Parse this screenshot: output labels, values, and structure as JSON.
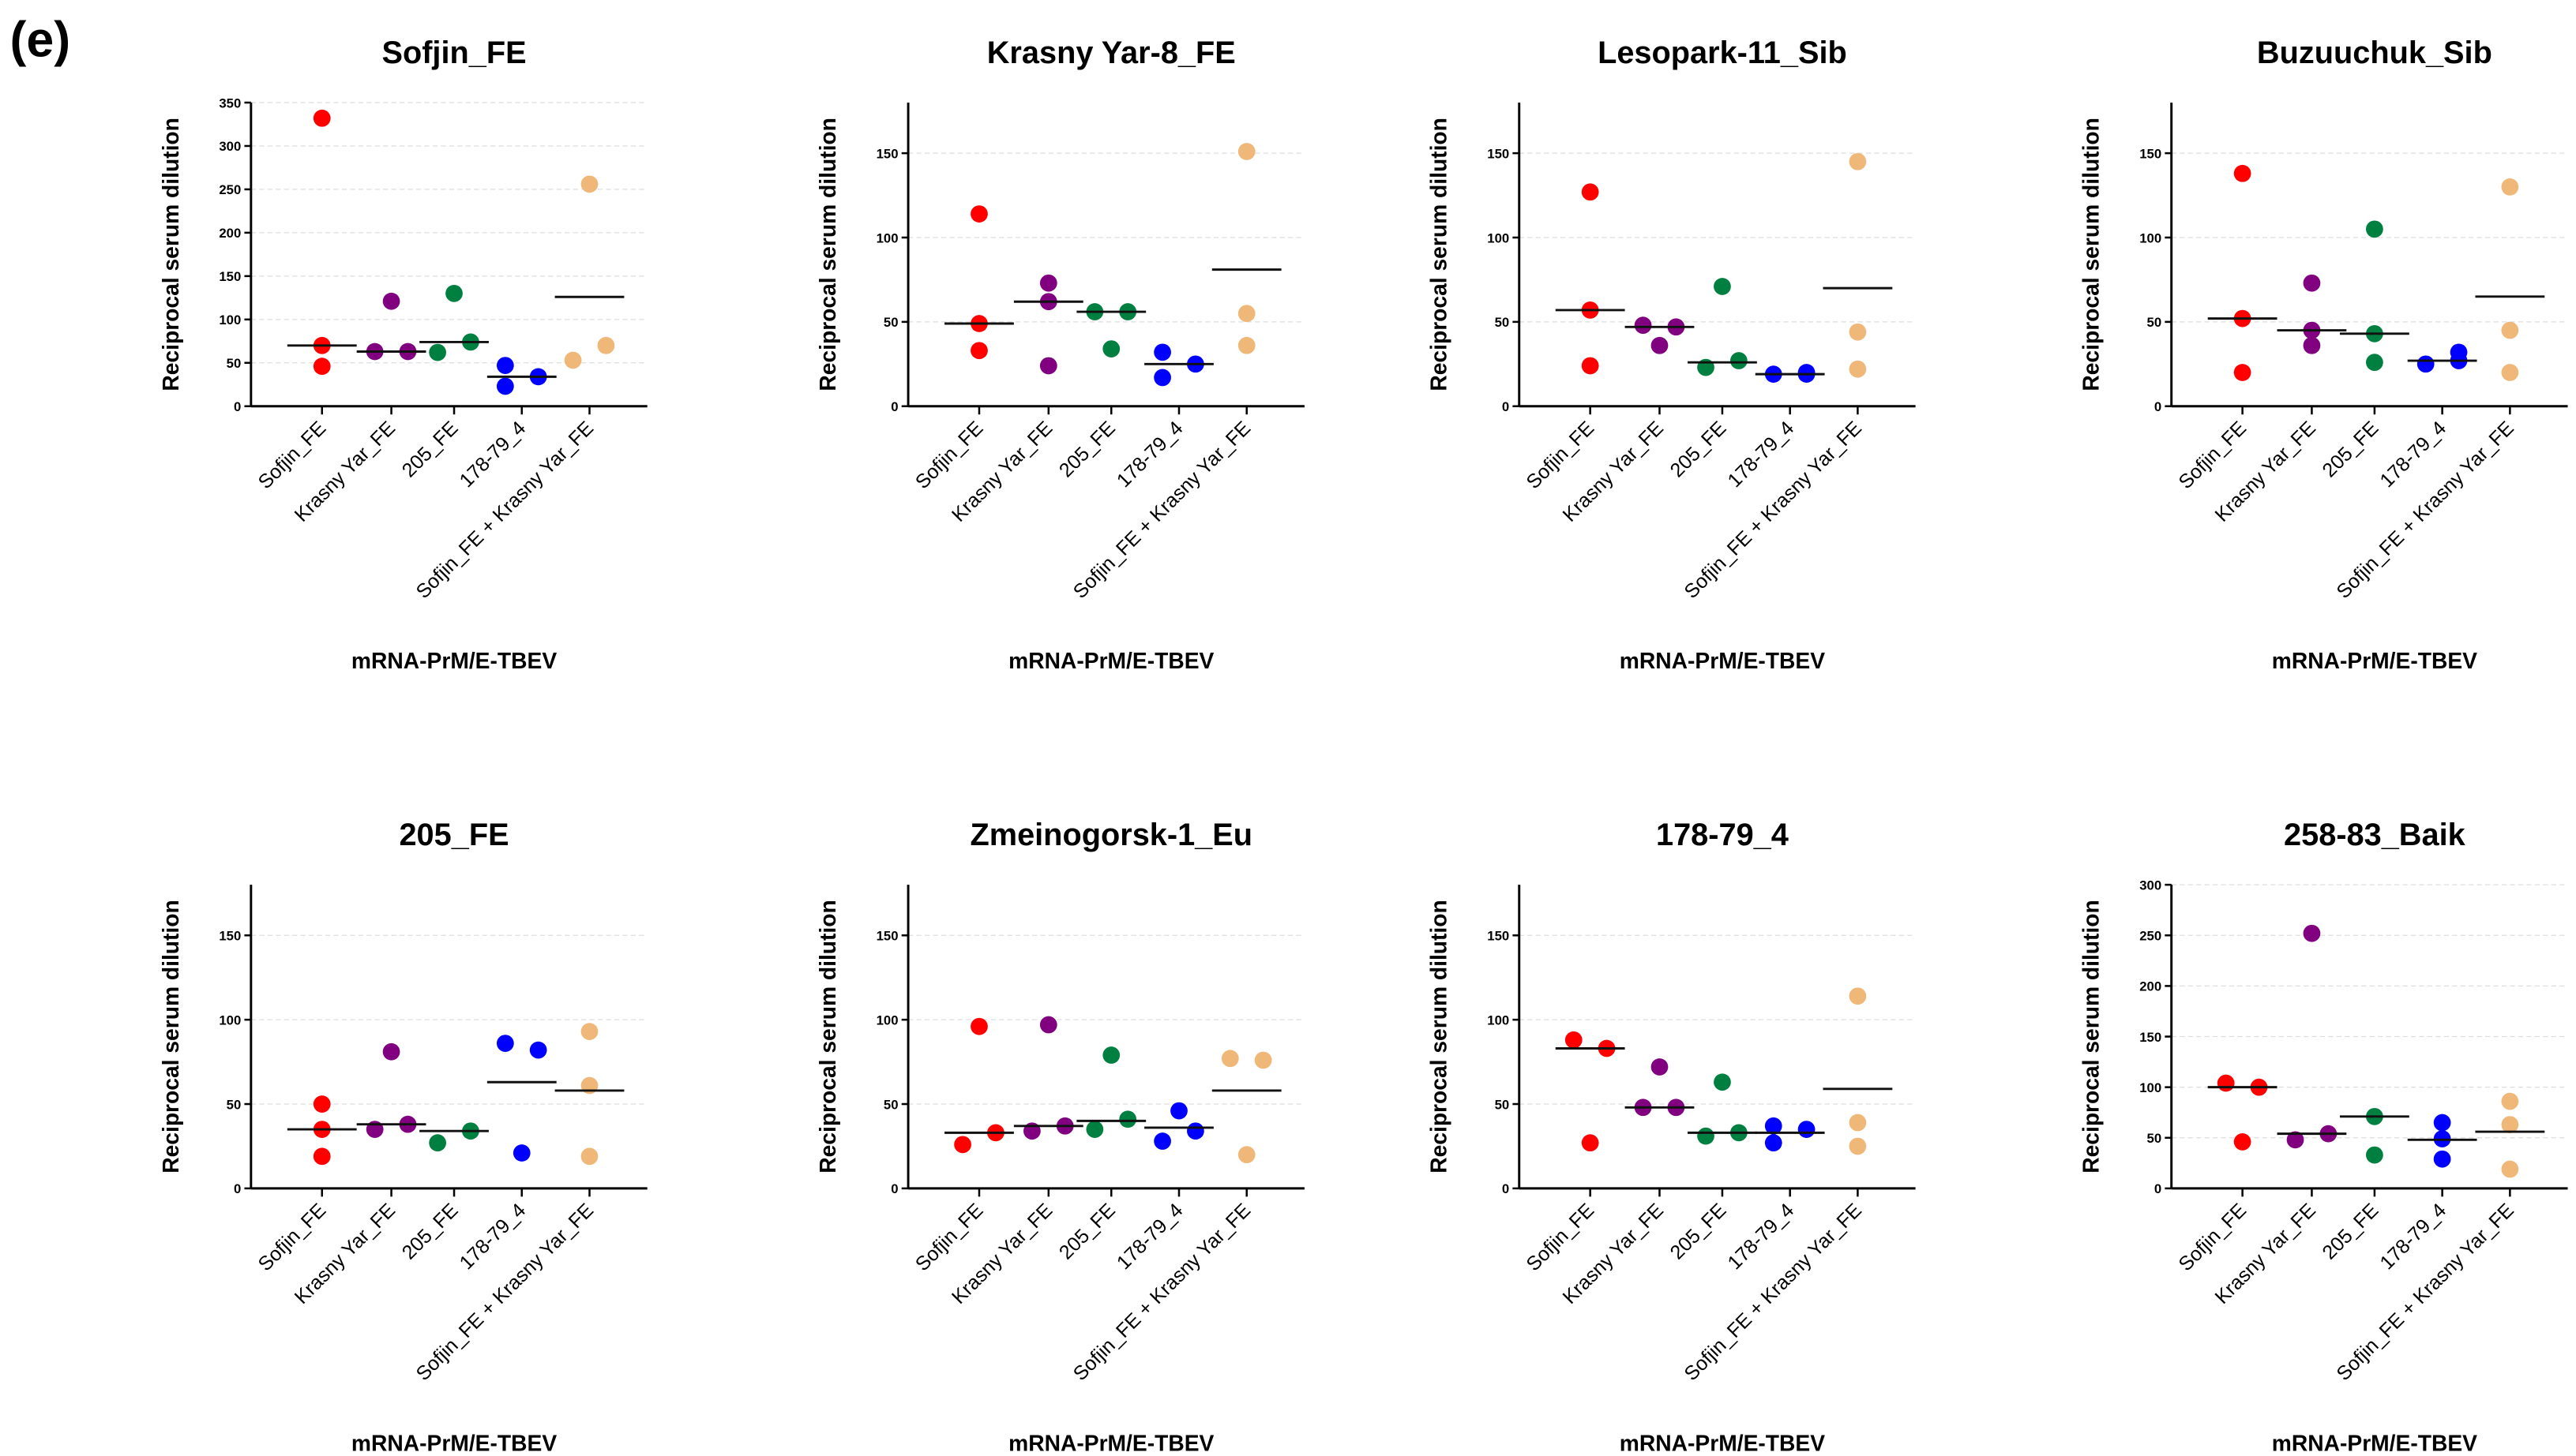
{
  "panel_label": "(e)",
  "chart_data": [
    {
      "type": "scatter",
      "title": "Sofjin_FE",
      "xlabel": "mRNA-PrM/E-TBEV",
      "ylabel": "Reciprocal serum dilution",
      "ylim": [
        0,
        350
      ],
      "yticks": [
        0,
        50,
        100,
        150,
        200,
        250,
        300,
        350
      ],
      "grid": true,
      "categories": [
        "Sofjin_FE",
        "Krasny Yar_FE",
        "205_FE",
        "178-79_4",
        "Sofjin_FE + Krasny Yar_FE"
      ],
      "series": [
        {
          "name": "Sofjin_FE",
          "color": "#ff0000",
          "values": [
            332,
            70,
            46
          ],
          "center": 70
        },
        {
          "name": "Krasny Yar_FE",
          "color": "#800080",
          "values": [
            121,
            63,
            63
          ],
          "center": 63
        },
        {
          "name": "205_FE",
          "color": "#008040",
          "values": [
            62,
            130,
            74
          ],
          "center": 74
        },
        {
          "name": "178-79_4",
          "color": "#0000ff",
          "values": [
            47,
            23,
            34
          ],
          "center": 34
        },
        {
          "name": "Sofjin_FE + Krasny Yar_FE",
          "color": "#f0b878",
          "values": [
            53,
            256,
            70
          ],
          "center": 126
        }
      ]
    },
    {
      "type": "scatter",
      "title": "Krasny Yar-8_FE",
      "xlabel": "mRNA-PrM/E-TBEV",
      "ylabel": "Reciprocal serum dilution",
      "ylim": [
        0,
        180
      ],
      "yticks": [
        0,
        50,
        100,
        150
      ],
      "grid": true,
      "categories": [
        "Sofjin_FE",
        "Krasny Yar_FE",
        "205_FE",
        "178-79_4",
        "Sofjin_FE + Krasny Yar_FE"
      ],
      "series": [
        {
          "name": "Sofjin_FE",
          "color": "#ff0000",
          "values": [
            114,
            49,
            33
          ],
          "center": 49
        },
        {
          "name": "Krasny Yar_FE",
          "color": "#800080",
          "values": [
            73,
            62,
            24
          ],
          "center": 62
        },
        {
          "name": "205_FE",
          "color": "#008040",
          "values": [
            56,
            56,
            34
          ],
          "center": 56
        },
        {
          "name": "178-79_4",
          "color": "#0000ff",
          "values": [
            32,
            17,
            25
          ],
          "center": 25
        },
        {
          "name": "Sofjin_FE + Krasny Yar_FE",
          "color": "#f0b878",
          "values": [
            151,
            55,
            36
          ],
          "center": 81
        }
      ]
    },
    {
      "type": "scatter",
      "title": "Lesopark-11_Sib",
      "xlabel": "mRNA-PrM/E-TBEV",
      "ylabel": "Reciprocal serum dilution",
      "ylim": [
        0,
        180
      ],
      "yticks": [
        0,
        50,
        100,
        150
      ],
      "grid": true,
      "categories": [
        "Sofjin_FE",
        "Krasny Yar_FE",
        "205_FE",
        "178-79_4",
        "Sofjin_FE + Krasny Yar_FE"
      ],
      "series": [
        {
          "name": "Sofjin_FE",
          "color": "#ff0000",
          "values": [
            127,
            57,
            24
          ],
          "center": 57
        },
        {
          "name": "Krasny Yar_FE",
          "color": "#800080",
          "values": [
            48,
            36,
            47
          ],
          "center": 47
        },
        {
          "name": "205_FE",
          "color": "#008040",
          "values": [
            23,
            71,
            27
          ],
          "center": 26
        },
        {
          "name": "178-79_4",
          "color": "#0000ff",
          "values": [
            19,
            20,
            19
          ],
          "center": 19
        },
        {
          "name": "Sofjin_FE + Krasny Yar_FE",
          "color": "#f0b878",
          "values": [
            145,
            44,
            22
          ],
          "center": 70
        }
      ]
    },
    {
      "type": "scatter",
      "title": "Buzuuchuk_Sib",
      "xlabel": "mRNA-PrM/E-TBEV",
      "ylabel": "Reciprocal serum dilution",
      "ylim": [
        0,
        180
      ],
      "yticks": [
        0,
        50,
        100,
        150
      ],
      "grid": true,
      "categories": [
        "Sofjin_FE",
        "Krasny Yar_FE",
        "205_FE",
        "178-79_4",
        "Sofjin_FE + Krasny Yar_FE"
      ],
      "series": [
        {
          "name": "Sofjin_FE",
          "color": "#ff0000",
          "values": [
            138,
            52,
            20
          ],
          "center": 52
        },
        {
          "name": "Krasny Yar_FE",
          "color": "#800080",
          "values": [
            73,
            45,
            36
          ],
          "center": 45
        },
        {
          "name": "205_FE",
          "color": "#008040",
          "values": [
            105,
            43,
            26
          ],
          "center": 43
        },
        {
          "name": "178-79_4",
          "color": "#0000ff",
          "values": [
            25,
            32,
            27
          ],
          "center": 27
        },
        {
          "name": "Sofjin_FE + Krasny Yar_FE",
          "color": "#f0b878",
          "values": [
            130,
            45,
            20
          ],
          "center": 65
        }
      ]
    },
    {
      "type": "scatter",
      "title": "205_FE",
      "xlabel": "mRNA-PrM/E-TBEV",
      "ylabel": "Reciprocal serum dilution",
      "ylim": [
        0,
        180
      ],
      "yticks": [
        0,
        50,
        100,
        150
      ],
      "grid": true,
      "categories": [
        "Sofjin_FE",
        "Krasny Yar_FE",
        "205_FE",
        "178-79_4",
        "Sofjin_FE + Krasny Yar_FE"
      ],
      "series": [
        {
          "name": "Sofjin_FE",
          "color": "#ff0000",
          "values": [
            50,
            35,
            19
          ],
          "center": 35
        },
        {
          "name": "Krasny Yar_FE",
          "color": "#800080",
          "values": [
            35,
            81,
            38
          ],
          "center": 38
        },
        {
          "name": "205_FE",
          "color": "#008040",
          "values": [
            27,
            34
          ],
          "center": 34
        },
        {
          "name": "178-79_4",
          "color": "#0000ff",
          "values": [
            86,
            21,
            82
          ],
          "center": 63
        },
        {
          "name": "Sofjin_FE + Krasny Yar_FE",
          "color": "#f0b878",
          "values": [
            93,
            61,
            19
          ],
          "center": 58
        }
      ]
    },
    {
      "type": "scatter",
      "title": "Zmeinogorsk-1_Eu",
      "xlabel": "mRNA-PrM/E-TBEV",
      "ylabel": "Reciprocal serum dilution",
      "ylim": [
        0,
        180
      ],
      "yticks": [
        0,
        50,
        100,
        150
      ],
      "grid": true,
      "categories": [
        "Sofjin_FE",
        "Krasny Yar_FE",
        "205_FE",
        "178-79_4",
        "Sofjin_FE + Krasny Yar_FE"
      ],
      "series": [
        {
          "name": "Sofjin_FE",
          "color": "#ff0000",
          "values": [
            26,
            96,
            33
          ],
          "center": 33
        },
        {
          "name": "Krasny Yar_FE",
          "color": "#800080",
          "values": [
            34,
            97,
            37
          ],
          "center": 37
        },
        {
          "name": "205_FE",
          "color": "#008040",
          "values": [
            35,
            79,
            41
          ],
          "center": 40
        },
        {
          "name": "178-79_4",
          "color": "#0000ff",
          "values": [
            28,
            46,
            34
          ],
          "center": 36
        },
        {
          "name": "Sofjin_FE + Krasny Yar_FE",
          "color": "#f0b878",
          "values": [
            77,
            20,
            76
          ],
          "center": 58
        }
      ]
    },
    {
      "type": "scatter",
      "title": "178-79_4",
      "xlabel": "mRNA-PrM/E-TBEV",
      "ylabel": "Reciprocal serum dilution",
      "ylim": [
        0,
        180
      ],
      "yticks": [
        0,
        50,
        100,
        150
      ],
      "grid": true,
      "categories": [
        "Sofjin_FE",
        "Krasny Yar_FE",
        "205_FE",
        "178-79_4",
        "Sofjin_FE + Krasny Yar_FE"
      ],
      "series": [
        {
          "name": "Sofjin_FE",
          "color": "#ff0000",
          "values": [
            88,
            27,
            83
          ],
          "center": 83
        },
        {
          "name": "Krasny Yar_FE",
          "color": "#800080",
          "values": [
            48,
            72,
            48
          ],
          "center": 48
        },
        {
          "name": "205_FE",
          "color": "#008040",
          "values": [
            31,
            63,
            33
          ],
          "center": 33
        },
        {
          "name": "178-79_4",
          "color": "#0000ff",
          "values": [
            27,
            37,
            35
          ],
          "center": 33
        },
        {
          "name": "Sofjin_FE + Krasny Yar_FE",
          "color": "#f0b878",
          "values": [
            114,
            39,
            25
          ],
          "center": 59
        }
      ]
    },
    {
      "type": "scatter",
      "title": "258-83_Baik",
      "xlabel": "mRNA-PrM/E-TBEV",
      "ylabel": "Reciprocal serum dilution",
      "ylim": [
        0,
        300
      ],
      "yticks": [
        0,
        50,
        100,
        150,
        200,
        250,
        300
      ],
      "grid": true,
      "categories": [
        "Sofjin_FE",
        "Krasny Yar_FE",
        "205_FE",
        "178-79_4",
        "Sofjin_FE + Krasny Yar_FE"
      ],
      "series": [
        {
          "name": "Sofjin_FE",
          "color": "#ff0000",
          "values": [
            104,
            46,
            100
          ],
          "center": 100
        },
        {
          "name": "Krasny Yar_FE",
          "color": "#800080",
          "values": [
            48,
            252,
            54
          ],
          "center": 54
        },
        {
          "name": "205_FE",
          "color": "#008040",
          "values": [
            33,
            71
          ],
          "center": 71
        },
        {
          "name": "178-79_4",
          "color": "#0000ff",
          "values": [
            65,
            29,
            49
          ],
          "center": 48
        },
        {
          "name": "Sofjin_FE + Krasny Yar_FE",
          "color": "#f0b878",
          "values": [
            86,
            63,
            19
          ],
          "center": 56
        }
      ]
    }
  ]
}
